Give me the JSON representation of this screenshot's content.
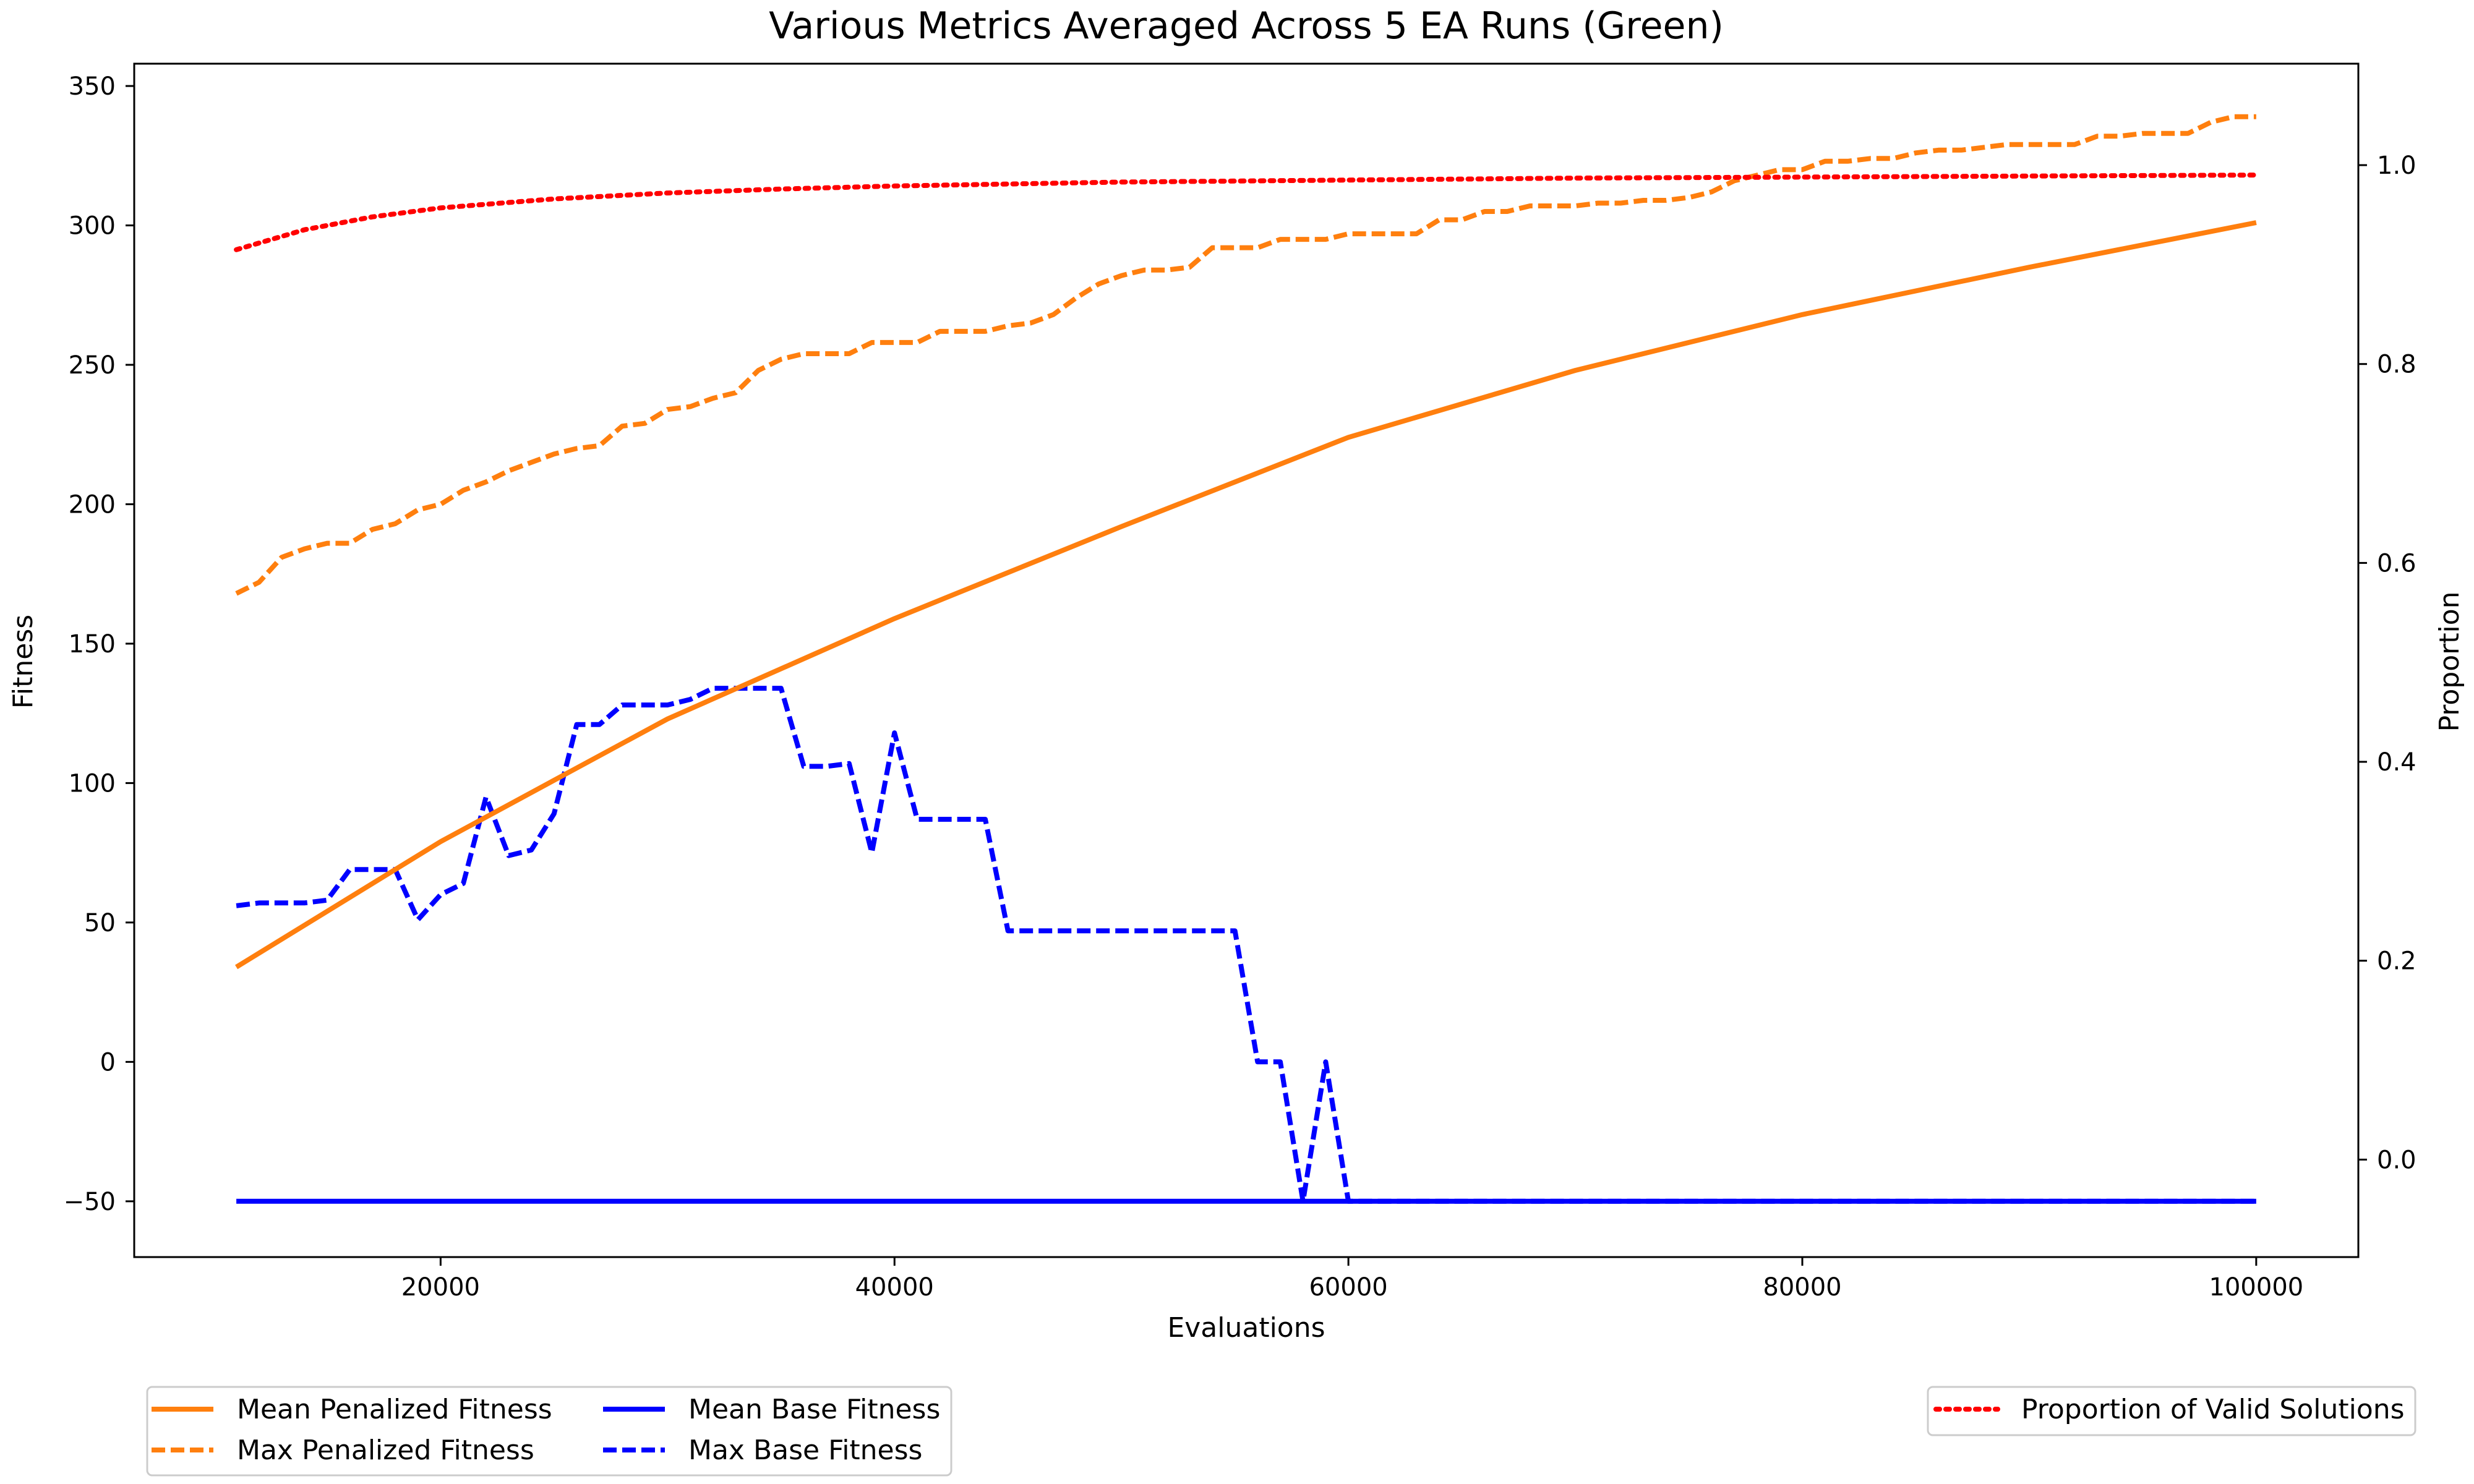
{
  "chart_data": {
    "type": "line",
    "title": "Various Metrics Averaged Across 5 EA Runs (Green)",
    "xlabel": "Evaluations",
    "ylabel": "Fitness",
    "y2label": "Proportion",
    "xlim": [
      6500,
      104500
    ],
    "ylim": [
      -70,
      358
    ],
    "y2lim": [
      -0.098,
      1.102
    ],
    "x_ticks": [
      20000,
      40000,
      60000,
      80000,
      100000
    ],
    "x_tick_labels": [
      "20000",
      "40000",
      "60000",
      "80000",
      "100000"
    ],
    "y_ticks": [
      -50,
      0,
      50,
      100,
      150,
      200,
      250,
      300,
      350
    ],
    "y_tick_labels": [
      "−50",
      "0",
      "50",
      "100",
      "150",
      "200",
      "250",
      "300",
      "350"
    ],
    "y2_ticks": [
      0.0,
      0.2,
      0.4,
      0.6,
      0.8,
      1.0
    ],
    "y2_tick_labels": [
      "0.0",
      "0.2",
      "0.4",
      "0.6",
      "0.8",
      "1.0"
    ],
    "grid": false,
    "legend": [
      {
        "placement": "bottom-left",
        "columns": 2,
        "entries": [
          "Mean Penalized Fitness",
          "Max Penalized Fitness",
          "Mean Base Fitness",
          "Max Base Fitness"
        ]
      },
      {
        "placement": "bottom-right",
        "columns": 1,
        "entries": [
          "Proportion of Valid Solutions"
        ]
      }
    ],
    "series": [
      {
        "name": "Mean Penalized Fitness",
        "axis": "left",
        "color": "#ff7f0e",
        "style": "solid",
        "x": [
          11000,
          20000,
          30000,
          40000,
          50000,
          60000,
          70000,
          80000,
          90000,
          100000
        ],
        "y": [
          34,
          79,
          123,
          159,
          192,
          224,
          248,
          268,
          285,
          301
        ]
      },
      {
        "name": "Max Penalized Fitness",
        "axis": "left",
        "color": "#ff7f0e",
        "style": "dashed",
        "x": [
          11000,
          12000,
          13000,
          14000,
          15000,
          16000,
          17000,
          18000,
          19000,
          20000,
          21000,
          22000,
          23000,
          24000,
          25000,
          26000,
          27000,
          28000,
          29000,
          30000,
          31000,
          32000,
          33000,
          34000,
          35000,
          36000,
          37000,
          38000,
          39000,
          40000,
          41000,
          42000,
          43000,
          44000,
          45000,
          46000,
          47000,
          48000,
          49000,
          50000,
          51000,
          52000,
          53000,
          54000,
          55000,
          56000,
          57000,
          58000,
          59000,
          60000,
          61000,
          62000,
          63000,
          64000,
          65000,
          66000,
          67000,
          68000,
          69000,
          70000,
          71000,
          72000,
          73000,
          74000,
          75000,
          76000,
          77000,
          78000,
          79000,
          80000,
          81000,
          82000,
          83000,
          84000,
          85000,
          86000,
          87000,
          88000,
          89000,
          90000,
          91000,
          92000,
          93000,
          94000,
          95000,
          96000,
          97000,
          98000,
          99000,
          100000
        ],
        "y": [
          168,
          172,
          181,
          184,
          186,
          186,
          191,
          193,
          198,
          200,
          205,
          208,
          212,
          215,
          218,
          220,
          221,
          228,
          229,
          234,
          235,
          238,
          240,
          248,
          252,
          254,
          254,
          254,
          258,
          258,
          258,
          262,
          262,
          262,
          264,
          265,
          268,
          274,
          279,
          282,
          284,
          284,
          285,
          292,
          292,
          292,
          295,
          295,
          295,
          297,
          297,
          297,
          297,
          302,
          302,
          305,
          305,
          307,
          307,
          307,
          308,
          308,
          309,
          309,
          310,
          312,
          316,
          318,
          320,
          320,
          323,
          323,
          324,
          324,
          326,
          327,
          327,
          328,
          329,
          329,
          329,
          329,
          332,
          332,
          333,
          333,
          333,
          337,
          339,
          339
        ]
      },
      {
        "name": "Mean Base Fitness",
        "axis": "left",
        "color": "#0000ff",
        "style": "solid",
        "x": [
          11000,
          100000
        ],
        "y": [
          -50,
          -50
        ]
      },
      {
        "name": "Max Base Fitness",
        "axis": "left",
        "color": "#0000ff",
        "style": "dashed",
        "x": [
          11000,
          12000,
          13000,
          14000,
          15000,
          16000,
          17000,
          18000,
          19000,
          20000,
          21000,
          22000,
          23000,
          24000,
          25000,
          26000,
          27000,
          28000,
          29000,
          30000,
          31000,
          32000,
          33000,
          34000,
          35000,
          36000,
          37000,
          38000,
          39000,
          40000,
          41000,
          42000,
          43000,
          44000,
          45000,
          55000,
          56000,
          57000,
          58000,
          59000,
          60000,
          100000
        ],
        "y": [
          56,
          57,
          57,
          57,
          58,
          69,
          69,
          69,
          51,
          60,
          64,
          95,
          74,
          76,
          89,
          121,
          121,
          128,
          128,
          128,
          130,
          134,
          134,
          134,
          134,
          106,
          106,
          107,
          75,
          118,
          87,
          87,
          87,
          87,
          47,
          47,
          0,
          0,
          -50,
          0,
          -50,
          -50
        ]
      },
      {
        "name": "Proportion of Valid Solutions",
        "axis": "right",
        "color": "#ff0000",
        "style": "dotted",
        "x": [
          11000,
          14000,
          17000,
          20000,
          25000,
          30000,
          35000,
          40000,
          50000,
          60000,
          70000,
          80000,
          90000,
          100000
        ],
        "y": [
          0.915,
          0.935,
          0.948,
          0.957,
          0.966,
          0.972,
          0.976,
          0.979,
          0.983,
          0.985,
          0.987,
          0.988,
          0.989,
          0.99
        ]
      }
    ]
  }
}
